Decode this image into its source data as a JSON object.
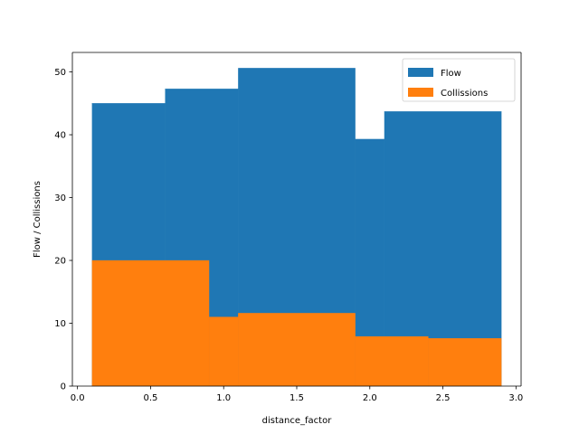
{
  "chart_data": {
    "type": "bar",
    "title": "",
    "xlabel": "distance_factor",
    "ylabel": "Flow / Collissions",
    "xlim": [
      -0.035,
      3.035
    ],
    "ylim": [
      0,
      53.1
    ],
    "xticks": [
      0.0,
      0.5,
      1.0,
      1.5,
      2.0,
      2.5,
      3.0
    ],
    "yticks": [
      0,
      10,
      20,
      30,
      40,
      50
    ],
    "xtick_labels": [
      "0.0",
      "0.5",
      "1.0",
      "1.5",
      "2.0",
      "2.5",
      "3.0"
    ],
    "ytick_labels": [
      "0",
      "10",
      "20",
      "30",
      "40",
      "50"
    ],
    "grid": false,
    "legend_position": "upper right",
    "series": [
      {
        "name": "Flow",
        "color": "#1f77b4",
        "bars": [
          {
            "x_start": 0.1,
            "x_end": 0.6,
            "value": 45.0
          },
          {
            "x_start": 0.6,
            "x_end": 1.1,
            "value": 47.3
          },
          {
            "x_start": 1.1,
            "x_end": 1.9,
            "value": 50.6
          },
          {
            "x_start": 1.9,
            "x_end": 2.1,
            "value": 39.3
          },
          {
            "x_start": 2.1,
            "x_end": 2.9,
            "value": 43.7
          }
        ]
      },
      {
        "name": "Collissions",
        "color": "#ff7f0e",
        "bars": [
          {
            "x_start": 0.1,
            "x_end": 0.9,
            "value": 20.0
          },
          {
            "x_start": 0.9,
            "x_end": 1.1,
            "value": 11.0
          },
          {
            "x_start": 1.1,
            "x_end": 1.9,
            "value": 11.6
          },
          {
            "x_start": 1.9,
            "x_end": 2.4,
            "value": 7.9
          },
          {
            "x_start": 2.4,
            "x_end": 2.9,
            "value": 7.6
          }
        ]
      }
    ]
  }
}
